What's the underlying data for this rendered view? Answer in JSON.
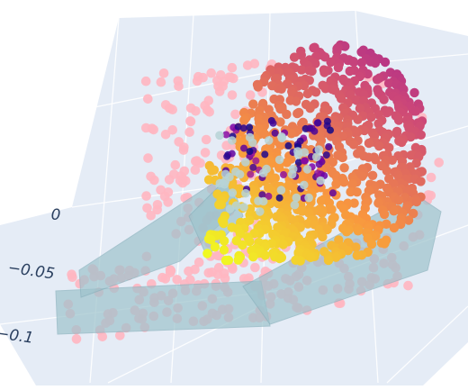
{
  "chart_data": {
    "type": "scatter3d",
    "title": "",
    "colors": {
      "background": "#ffffff",
      "scene_pane": "#e5ecf6",
      "grid": "#ffffff",
      "tick_text": "#2a3f5f",
      "point_cloud": "#ffb6c1",
      "bracket_mesh": "#9ec3cc",
      "surface_colorscale": [
        "#0d0887",
        "#7e03a8",
        "#cc4778",
        "#f89540",
        "#f0f921"
      ]
    },
    "axes": {
      "z": {
        "tick_labels": [
          "0",
          "−0.05",
          "−0.1"
        ]
      }
    },
    "series": [
      {
        "kind": "pink_points",
        "count": 320
      },
      {
        "kind": "orange_sphere_points",
        "count": 900
      }
    ],
    "meshes": [
      {
        "kind": "bracket_mesh"
      }
    ]
  }
}
